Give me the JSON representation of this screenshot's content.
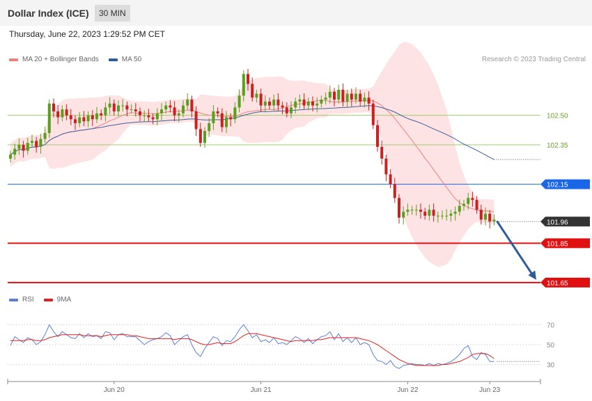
{
  "header": {
    "title": "Dollar Index (ICE)",
    "interval": "30 MIN",
    "datetime": "Thursday, June 22, 2023 1:29:52 PM CET",
    "research": "Research © 2023 Trading Central"
  },
  "legend_top": [
    {
      "label": "MA 20 + Bollinger Bands",
      "color": "#f08080"
    },
    {
      "label": "MA 50",
      "color": "#2f5a9c"
    }
  ],
  "legend_bottom": [
    {
      "label": "RSI",
      "color": "#5b7fd0"
    },
    {
      "label": "9MA",
      "color": "#e02020"
    }
  ],
  "colors": {
    "up": "#5a9e1e",
    "down": "#cc1f1f",
    "band": "#fde0e0",
    "ma20": "#f08080",
    "ma50": "#3d5f9e",
    "resistance": "#1a66e8",
    "support": "#e01010",
    "target_green": "#9ccf6a",
    "current": "#333333",
    "arrow": "#2e5b99"
  },
  "chart_data": [
    {
      "type": "candlestick",
      "x_tick_labels": [
        "Jun 20",
        "Jun 21",
        "Jun 22",
        "Jun 23"
      ],
      "y_range": [
        101.6,
        102.75
      ],
      "levels": [
        {
          "label": "102.50",
          "value": 102.5,
          "kind": "target"
        },
        {
          "label": "102.35",
          "value": 102.35,
          "kind": "target"
        },
        {
          "label": "102.15",
          "value": 102.15,
          "kind": "resistance"
        },
        {
          "label": "101.96",
          "value": 101.96,
          "kind": "current"
        },
        {
          "label": "101.85",
          "value": 101.85,
          "kind": "support"
        },
        {
          "label": "101.65",
          "value": 101.65,
          "kind": "support"
        }
      ],
      "close": [
        102.3,
        102.33,
        102.35,
        102.32,
        102.36,
        102.37,
        102.34,
        102.38,
        102.41,
        102.56,
        102.52,
        102.49,
        102.53,
        102.5,
        102.48,
        102.46,
        102.49,
        102.47,
        102.5,
        102.48,
        102.51,
        102.5,
        102.54,
        102.56,
        102.52,
        102.55,
        102.55,
        102.53,
        102.53,
        102.52,
        102.5,
        102.5,
        102.49,
        102.48,
        102.51,
        102.53,
        102.55,
        102.54,
        102.5,
        102.51,
        102.55,
        102.58,
        102.52,
        102.43,
        102.36,
        102.42,
        102.46,
        102.52,
        102.51,
        102.44,
        102.49,
        102.48,
        102.54,
        102.6,
        102.71,
        102.66,
        102.59,
        102.61,
        102.55,
        102.57,
        102.55,
        102.58,
        102.55,
        102.54,
        102.51,
        102.54,
        102.57,
        102.58,
        102.55,
        102.57,
        102.55,
        102.56,
        102.58,
        102.59,
        102.62,
        102.58,
        102.63,
        102.57,
        102.61,
        102.58,
        102.61,
        102.57,
        102.59,
        102.56,
        102.45,
        102.34,
        102.28,
        102.2,
        102.15,
        102.08,
        101.98,
        102.01,
        102.02,
        102.02,
        102.02,
        102.01,
        101.99,
        102.02,
        101.99,
        101.99,
        101.99,
        101.99,
        102.0,
        102.01,
        102.04,
        102.05,
        102.08,
        102.07,
        102.02,
        101.97,
        102.0,
        101.96,
        101.97
      ]
    },
    {
      "type": "line",
      "title": "RSI",
      "y_ticks": [
        "70",
        "50",
        "30"
      ],
      "y_range": [
        15,
        85
      ],
      "series": [
        {
          "name": "RSI",
          "values": [
            49,
            58,
            55,
            52,
            57,
            55,
            50,
            53,
            60,
            70,
            63,
            58,
            63,
            60,
            57,
            56,
            61,
            57,
            61,
            58,
            59,
            56,
            63,
            62,
            55,
            60,
            61,
            58,
            58,
            58,
            54,
            50,
            53,
            55,
            56,
            58,
            62,
            59,
            50,
            54,
            58,
            60,
            50,
            42,
            38,
            46,
            52,
            58,
            56,
            49,
            54,
            53,
            58,
            65,
            70,
            64,
            57,
            60,
            53,
            55,
            52,
            57,
            51,
            52,
            50,
            54,
            58,
            56,
            52,
            56,
            51,
            55,
            58,
            59,
            63,
            55,
            61,
            53,
            57,
            52,
            57,
            50,
            52,
            50,
            40,
            34,
            33,
            30,
            34,
            28,
            26,
            29,
            30,
            31,
            30,
            30,
            29,
            31,
            29,
            31,
            30,
            31,
            33,
            36,
            40,
            46,
            49,
            38,
            35,
            42,
            40,
            33,
            33
          ]
        },
        {
          "name": "9MA",
          "values": [
            54,
            54,
            54,
            54,
            55,
            55,
            54,
            54,
            55,
            57,
            58,
            59,
            60,
            60,
            60,
            60,
            60,
            59,
            59,
            59,
            59,
            58,
            59,
            60,
            60,
            60,
            60,
            60,
            59,
            59,
            58,
            57,
            56,
            56,
            56,
            56,
            56,
            56,
            55,
            56,
            56,
            56,
            55,
            53,
            51,
            50,
            50,
            51,
            52,
            51,
            51,
            51,
            53,
            56,
            59,
            61,
            61,
            61,
            60,
            59,
            58,
            57,
            56,
            55,
            54,
            53,
            54,
            54,
            54,
            54,
            54,
            55,
            55,
            56,
            57,
            57,
            57,
            57,
            57,
            57,
            57,
            56,
            55,
            54,
            52,
            50,
            47,
            44,
            41,
            38,
            35,
            33,
            31,
            30,
            29,
            29,
            29,
            29,
            29,
            29,
            30,
            30,
            31,
            32,
            33,
            35,
            37,
            40,
            41,
            41,
            41,
            39,
            36
          ]
        }
      ]
    }
  ]
}
